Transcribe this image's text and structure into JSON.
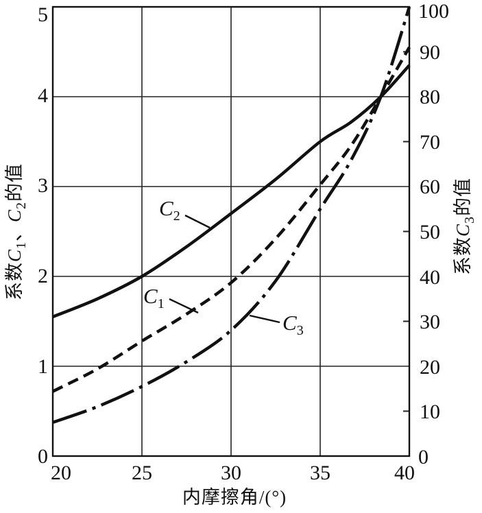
{
  "chart_data": {
    "type": "line",
    "title": "",
    "xlabel": "内摩擦角/(°)",
    "ylabel_left": "系数C1、C2的值",
    "ylabel_right": "系数C3的值",
    "x_range": [
      20,
      40
    ],
    "y_left_range": [
      0,
      5
    ],
    "y_right_range": [
      0,
      100
    ],
    "grid": "on",
    "x_ticks": [
      20,
      25,
      30,
      35,
      40
    ],
    "y_left_ticks": [
      0,
      1,
      2,
      3,
      4,
      5
    ],
    "y_right_ticks": [
      0,
      10,
      20,
      30,
      40,
      50,
      60,
      70,
      80,
      90,
      100
    ],
    "x_tick_labels": [
      "20",
      "25",
      "30",
      "35",
      "40"
    ],
    "y_left_tick_labels": [
      "0",
      "1",
      "2",
      "3",
      "4",
      "5"
    ],
    "y_right_tick_labels": [
      "0",
      "10",
      "20",
      "30",
      "40",
      "50",
      "60",
      "70",
      "80",
      "90",
      "100"
    ],
    "series": [
      {
        "name": "C1",
        "axis": "left",
        "style": "dashed",
        "color": "#111111",
        "points": [
          [
            20,
            0.72
          ],
          [
            22.5,
            0.97
          ],
          [
            25,
            1.28
          ],
          [
            27.5,
            1.58
          ],
          [
            30,
            1.93
          ],
          [
            32.5,
            2.42
          ],
          [
            35,
            3.02
          ],
          [
            36.75,
            3.46
          ],
          [
            38.4,
            4.0
          ],
          [
            40,
            4.55
          ]
        ]
      },
      {
        "name": "C2",
        "axis": "left",
        "style": "solid",
        "color": "#111111",
        "points": [
          [
            20,
            1.55
          ],
          [
            22.5,
            1.75
          ],
          [
            25,
            2.0
          ],
          [
            27.5,
            2.33
          ],
          [
            30,
            2.7
          ],
          [
            32.5,
            3.08
          ],
          [
            35,
            3.5
          ],
          [
            36.75,
            3.72
          ],
          [
            38.4,
            4.0
          ],
          [
            40,
            4.35
          ]
        ]
      },
      {
        "name": "C3",
        "axis": "right",
        "style": "dash-dot",
        "color": "#111111",
        "points": [
          [
            20,
            7.5
          ],
          [
            22.5,
            11
          ],
          [
            25,
            15.5
          ],
          [
            27.5,
            21
          ],
          [
            30,
            28
          ],
          [
            32.5,
            39
          ],
          [
            35,
            55
          ],
          [
            36.75,
            66
          ],
          [
            38.4,
            80
          ],
          [
            40,
            100
          ]
        ]
      }
    ],
    "crossing_point_note": "all three curves intersect near x=38.4, left value 4.0, right value 80"
  },
  "titles": {
    "x_title": "内摩擦角/(°)",
    "y_left": {
      "pre": "系数",
      "c1": "C",
      "sub1": "1",
      "comma": "、",
      "c2": "C",
      "sub2": "2",
      "post": "的值"
    },
    "y_right": {
      "pre": "系数",
      "c": "C",
      "sub": "3",
      "post": "的值"
    }
  },
  "curve_labels": [
    {
      "main": "C",
      "sub": "1"
    },
    {
      "main": "C",
      "sub": "2"
    },
    {
      "main": "C",
      "sub": "3"
    }
  ],
  "colors": {
    "background": "#ffffff",
    "axis": "#111111",
    "grid": "#222222",
    "curve": "#111111"
  }
}
